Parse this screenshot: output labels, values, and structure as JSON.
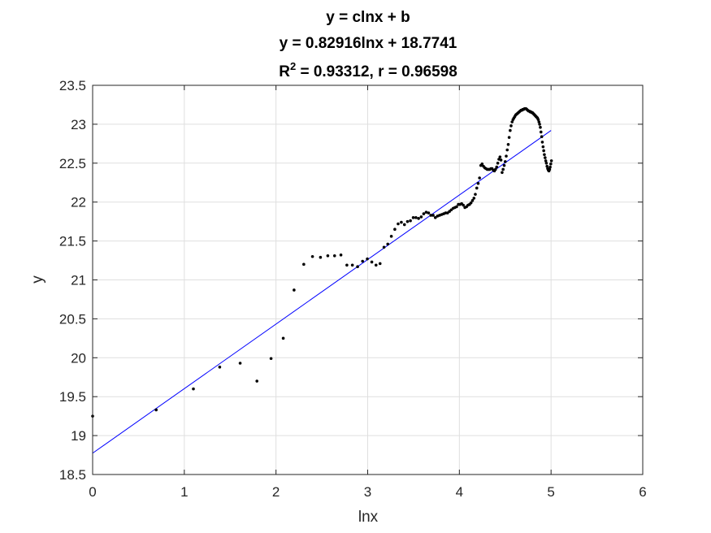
{
  "chart_data": {
    "type": "scatter",
    "title_line1": "y = clnx + b",
    "title_line2": "y = 0.82916lnx + 18.7741",
    "title_line3_prefix": "R",
    "title_line3_sup": "2",
    "title_line3_suffix": " = 0.93312, r = 0.96598",
    "xlabel": "lnx",
    "ylabel": "y",
    "xlim": [
      0,
      6
    ],
    "ylim": [
      18.5,
      23.5
    ],
    "xticks": [
      "0",
      "1",
      "2",
      "3",
      "4",
      "5",
      "6"
    ],
    "yticks": [
      "18.5",
      "19",
      "19.5",
      "20",
      "20.5",
      "21",
      "21.5",
      "22",
      "22.5",
      "23",
      "23.5"
    ],
    "grid": true,
    "fit": {
      "slope": 0.82916,
      "intercept": 18.7741,
      "x_range": [
        0,
        5.0
      ],
      "color": "#0000ff"
    },
    "point_color": "#000000",
    "x": [
      0,
      0.693,
      1.099,
      1.386,
      1.609,
      1.792,
      1.946,
      2.079,
      2.197,
      2.303,
      2.398,
      2.485,
      2.565,
      2.639,
      2.708,
      2.773,
      2.833,
      2.89,
      2.944,
      2.996,
      3.045,
      3.091,
      3.135,
      3.178,
      3.219,
      3.258,
      3.296,
      3.332,
      3.367,
      3.401,
      3.434,
      3.466,
      3.497,
      3.526,
      3.555,
      3.584,
      3.611,
      3.638,
      3.664,
      3.689,
      3.714,
      3.738,
      3.761,
      3.784,
      3.807,
      3.829,
      3.85,
      3.871,
      3.892,
      3.912,
      3.932,
      3.951,
      3.97,
      3.989,
      4.007,
      4.025,
      4.043,
      4.06,
      4.078,
      4.094,
      4.111,
      4.127,
      4.143,
      4.159,
      4.174,
      4.19,
      4.205,
      4.22,
      4.234,
      4.248,
      4.263,
      4.277,
      4.29,
      4.304,
      4.317,
      4.331,
      4.344,
      4.357,
      4.369,
      4.382,
      4.394,
      4.407,
      4.419,
      4.431,
      4.443,
      4.454,
      4.466,
      4.477,
      4.489,
      4.5,
      4.511,
      4.522,
      4.533,
      4.543,
      4.554,
      4.564,
      4.575,
      4.585,
      4.595,
      4.605,
      4.615,
      4.625,
      4.635,
      4.644,
      4.654,
      4.663,
      4.673,
      4.682,
      4.691,
      4.7,
      4.71,
      4.718,
      4.727,
      4.736,
      4.745,
      4.754,
      4.762,
      4.771,
      4.779,
      4.787,
      4.796,
      4.804,
      4.812,
      4.82,
      4.828,
      4.836,
      4.844,
      4.852,
      4.86,
      4.868,
      4.875,
      4.883,
      4.89,
      4.898,
      4.905,
      4.913,
      4.92,
      4.927,
      4.935,
      4.942,
      4.949,
      4.956,
      4.963,
      4.97,
      4.977,
      4.984,
      4.99,
      4.997,
      5.004
    ],
    "y": [
      19.25,
      19.33,
      19.6,
      19.88,
      19.93,
      19.7,
      19.99,
      20.25,
      20.87,
      21.2,
      21.3,
      21.29,
      21.31,
      21.31,
      21.32,
      21.19,
      21.19,
      21.17,
      21.24,
      21.27,
      21.23,
      21.19,
      21.21,
      21.42,
      21.46,
      21.56,
      21.65,
      21.72,
      21.74,
      21.71,
      21.75,
      21.76,
      21.8,
      21.8,
      21.79,
      21.81,
      21.85,
      21.87,
      21.86,
      21.83,
      21.83,
      21.8,
      21.82,
      21.83,
      21.84,
      21.85,
      21.86,
      21.86,
      21.88,
      21.9,
      21.92,
      21.93,
      21.94,
      21.97,
      21.97,
      21.98,
      21.96,
      21.93,
      21.94,
      21.96,
      21.97,
      21.99,
      22.02,
      22.05,
      22.1,
      22.18,
      22.24,
      22.31,
      22.47,
      22.49,
      22.46,
      22.44,
      22.43,
      22.42,
      22.42,
      22.42,
      22.43,
      22.43,
      22.41,
      22.4,
      22.42,
      22.45,
      22.5,
      22.55,
      22.58,
      22.54,
      22.38,
      22.42,
      22.47,
      22.52,
      22.59,
      22.67,
      22.74,
      22.83,
      22.92,
      22.98,
      23.03,
      23.06,
      23.08,
      23.1,
      23.12,
      23.13,
      23.14,
      23.15,
      23.16,
      23.17,
      23.18,
      23.18,
      23.19,
      23.19,
      23.2,
      23.2,
      23.2,
      23.19,
      23.18,
      23.17,
      23.17,
      23.16,
      23.16,
      23.15,
      23.15,
      23.14,
      23.13,
      23.12,
      23.11,
      23.1,
      23.09,
      23.08,
      23.06,
      23.03,
      23.0,
      22.96,
      22.9,
      22.84,
      22.77,
      22.71,
      22.66,
      22.61,
      22.57,
      22.53,
      22.5,
      22.46,
      22.43,
      22.41,
      22.4,
      22.42,
      22.45,
      22.49,
      22.53
    ]
  }
}
